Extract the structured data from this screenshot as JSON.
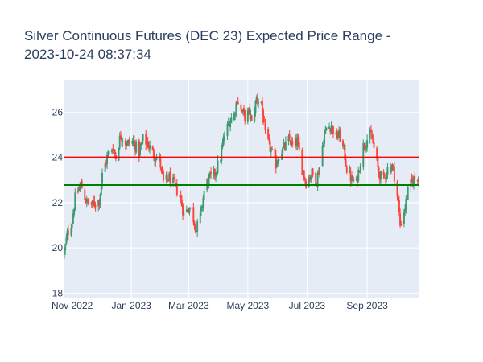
{
  "chart_data": {
    "type": "candlestick",
    "title_line1": "Silver Continuous Futures (DEC 23) Expected Price Range -",
    "title_line2": "2023-10-24 08:37:34",
    "xlabel": "",
    "ylabel": "",
    "x_range": [
      "2022-10-24",
      "2023-10-24"
    ],
    "ylim": [
      17.8,
      27.4
    ],
    "y_ticks": [
      18,
      20,
      22,
      24,
      26
    ],
    "x_ticks": [
      {
        "date": "2022-11-01",
        "label": "Nov 2022"
      },
      {
        "date": "2023-01-01",
        "label": "Jan 2023"
      },
      {
        "date": "2023-03-01",
        "label": "Mar 2023"
      },
      {
        "date": "2023-05-01",
        "label": "May 2023"
      },
      {
        "date": "2023-07-01",
        "label": "Jul 2023"
      },
      {
        "date": "2023-09-01",
        "label": "Sep 2023"
      }
    ],
    "grid": true,
    "legend": "none",
    "colors": {
      "increasing": "#3d9970",
      "decreasing": "#ff4136",
      "upper_line": "#ff0000",
      "lower_line": "#008000",
      "plot_bg": "#e5ecf6"
    },
    "reference_lines": [
      {
        "value": 24.0,
        "color": "#ff0000"
      },
      {
        "value": 22.78,
        "color": "#008000"
      }
    ],
    "close_path": [
      [
        "2022-10-24",
        19.8
      ],
      [
        "2022-10-27",
        20.6
      ],
      [
        "2022-11-01",
        21.2
      ],
      [
        "2022-11-04",
        22.2
      ],
      [
        "2022-11-10",
        22.8
      ],
      [
        "2022-11-16",
        22.0
      ],
      [
        "2022-11-22",
        21.9
      ],
      [
        "2022-11-29",
        22.1
      ],
      [
        "2022-12-02",
        23.2
      ],
      [
        "2022-12-07",
        24.0
      ],
      [
        "2022-12-13",
        24.5
      ],
      [
        "2022-12-16",
        24.0
      ],
      [
        "2022-12-21",
        25.0
      ],
      [
        "2022-12-27",
        24.6
      ],
      [
        "2023-01-03",
        24.7
      ],
      [
        "2023-01-09",
        24.2
      ],
      [
        "2023-01-13",
        24.8
      ],
      [
        "2023-01-18",
        24.6
      ],
      [
        "2023-01-24",
        24.1
      ],
      [
        "2023-01-30",
        23.9
      ],
      [
        "2023-02-03",
        22.9
      ],
      [
        "2023-02-09",
        23.1
      ],
      [
        "2023-02-14",
        22.8
      ],
      [
        "2023-02-20",
        22.3
      ],
      [
        "2023-02-24",
        21.5
      ],
      [
        "2023-03-02",
        21.8
      ],
      [
        "2023-03-06",
        21.3
      ],
      [
        "2023-03-09",
        20.8
      ],
      [
        "2023-03-14",
        21.6
      ],
      [
        "2023-03-17",
        22.5
      ],
      [
        "2023-03-21",
        23.0
      ],
      [
        "2023-03-28",
        23.3
      ],
      [
        "2023-04-03",
        24.0
      ],
      [
        "2023-04-06",
        24.8
      ],
      [
        "2023-04-12",
        25.6
      ],
      [
        "2023-04-17",
        25.9
      ],
      [
        "2023-04-20",
        26.6
      ],
      [
        "2023-04-24",
        26.1
      ],
      [
        "2023-04-28",
        25.8
      ],
      [
        "2023-05-03",
        26.0
      ],
      [
        "2023-05-05",
        25.5
      ],
      [
        "2023-05-10",
        26.6
      ],
      [
        "2023-05-15",
        26.4
      ],
      [
        "2023-05-19",
        25.0
      ],
      [
        "2023-05-24",
        24.4
      ],
      [
        "2023-05-30",
        23.7
      ],
      [
        "2023-06-02",
        24.1
      ],
      [
        "2023-06-07",
        24.4
      ],
      [
        "2023-06-13",
        24.8
      ],
      [
        "2023-06-16",
        24.5
      ],
      [
        "2023-06-21",
        24.7
      ],
      [
        "2023-06-26",
        23.5
      ],
      [
        "2023-06-30",
        22.9
      ],
      [
        "2023-07-06",
        23.3
      ],
      [
        "2023-07-11",
        23.0
      ],
      [
        "2023-07-14",
        23.6
      ],
      [
        "2023-07-18",
        24.8
      ],
      [
        "2023-07-21",
        25.3
      ],
      [
        "2023-07-26",
        25.4
      ],
      [
        "2023-07-31",
        24.9
      ],
      [
        "2023-08-03",
        25.0
      ],
      [
        "2023-08-08",
        24.3
      ],
      [
        "2023-08-11",
        23.5
      ],
      [
        "2023-08-16",
        23.0
      ],
      [
        "2023-08-21",
        22.9
      ],
      [
        "2023-08-24",
        23.6
      ],
      [
        "2023-08-28",
        24.5
      ],
      [
        "2023-09-01",
        24.8
      ],
      [
        "2023-09-05",
        25.0
      ],
      [
        "2023-09-08",
        24.4
      ],
      [
        "2023-09-13",
        23.3
      ],
      [
        "2023-09-18",
        23.0
      ],
      [
        "2023-09-22",
        23.5
      ],
      [
        "2023-09-27",
        23.6
      ],
      [
        "2023-09-29",
        23.2
      ],
      [
        "2023-10-03",
        22.0
      ],
      [
        "2023-10-05",
        21.0
      ],
      [
        "2023-10-10",
        21.8
      ],
      [
        "2023-10-13",
        22.5
      ],
      [
        "2023-10-18",
        23.0
      ],
      [
        "2023-10-24",
        23.2
      ]
    ]
  }
}
